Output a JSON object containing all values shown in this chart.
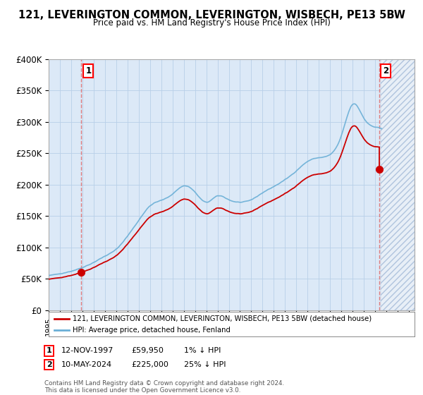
{
  "title": "121, LEVERINGTON COMMON, LEVERINGTON, WISBECH, PE13 5BW",
  "subtitle": "Price paid vs. HM Land Registry's House Price Index (HPI)",
  "ylim": [
    0,
    400000
  ],
  "yticks": [
    0,
    50000,
    100000,
    150000,
    200000,
    250000,
    300000,
    350000,
    400000
  ],
  "ytick_labels": [
    "£0",
    "£50K",
    "£100K",
    "£150K",
    "£200K",
    "£250K",
    "£300K",
    "£350K",
    "£400K"
  ],
  "hpi_color": "#6aafd6",
  "price_color": "#cc0000",
  "vline_color": "#e07070",
  "sale1_year": 1997.87,
  "sale1_price": 59950,
  "sale2_year": 2024.37,
  "sale2_price": 225000,
  "legend_line1": "121, LEVERINGTON COMMON, LEVERINGTON, WISBECH, PE13 5BW (detached house)",
  "legend_line2": "HPI: Average price, detached house, Fenland",
  "copyright": "Contains HM Land Registry data © Crown copyright and database right 2024.\nThis data is licensed under the Open Government Licence v3.0.",
  "xlim_start": 1995.0,
  "xlim_end": 2027.5,
  "plot_bg_color": "#dce9f7",
  "fig_bg_color": "#ffffff",
  "grid_color": "#b8cfe8",
  "hatch_start": 2024.5
}
